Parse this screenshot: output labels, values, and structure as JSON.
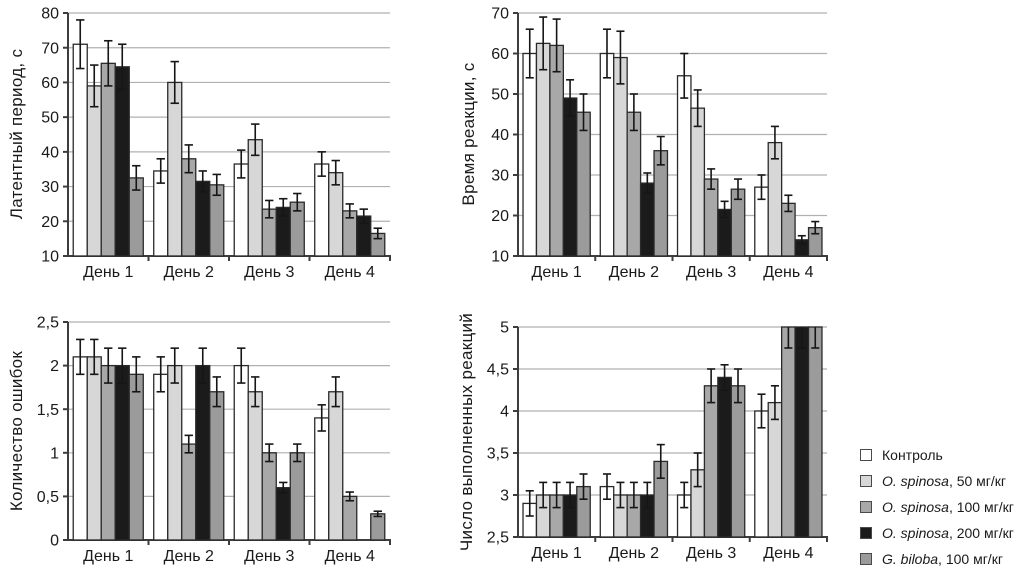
{
  "figure": {
    "background": "#ffffff",
    "series_colors": [
      "#ffffff",
      "#d7d7d7",
      "#a8a8a8",
      "#1b1b1b",
      "#9b9b9b"
    ],
    "grid_color": "#b0b0b0",
    "axis_color": "#3d3d3d",
    "bar_stroke": "#2a2a2a",
    "error_color": "#161616",
    "text_color": "#1a1a1a"
  },
  "legend": {
    "position": "bottom-right",
    "items": [
      {
        "italic": "",
        "text": "Контроль",
        "color": "#ffffff"
      },
      {
        "italic": "O. spinosa",
        "text": ", 50 мг/кг",
        "color": "#d7d7d7"
      },
      {
        "italic": "O. spinosa",
        "text": ", 100 мг/кг",
        "color": "#a8a8a8"
      },
      {
        "italic": "O. spinosa",
        "text": ", 200 мг/кг",
        "color": "#1b1b1b"
      },
      {
        "italic": "G. biloba",
        "text": ", 100 мг/кг",
        "color": "#9b9b9b"
      }
    ]
  },
  "chart_data": [
    {
      "id": "latent-period",
      "type": "bar",
      "ylabel": "Латентный период, с",
      "ylim": [
        10,
        80
      ],
      "yticks": [
        10,
        20,
        30,
        40,
        50,
        60,
        70,
        80
      ],
      "ytick_labels": [
        "10",
        "20",
        "30",
        "40",
        "50",
        "60",
        "70",
        "80"
      ],
      "categories": [
        "День 1",
        "День 2",
        "День 3",
        "День 4"
      ],
      "grid": true,
      "error_bars": true,
      "series": [
        {
          "name": "Контроль",
          "values": [
            71,
            34.5,
            36.5,
            36.5
          ],
          "errors": [
            7,
            3.5,
            4,
            3.5
          ]
        },
        {
          "name": "O. spinosa, 50 мг/кг",
          "values": [
            59,
            60,
            43.5,
            34
          ],
          "errors": [
            6,
            6,
            4.5,
            3.5
          ]
        },
        {
          "name": "O. spinosa, 100 мг/кг",
          "values": [
            65.5,
            38,
            23.5,
            23
          ],
          "errors": [
            6.5,
            4,
            2.5,
            2
          ]
        },
        {
          "name": "O. spinosa, 200 мг/кг",
          "values": [
            64.5,
            31.5,
            24,
            21.5
          ],
          "errors": [
            6.5,
            3,
            2.5,
            2
          ]
        },
        {
          "name": "G. biloba, 100 мг/кг",
          "values": [
            32.5,
            30.5,
            25.5,
            16.5
          ],
          "errors": [
            3.5,
            3,
            2.5,
            1.5
          ]
        }
      ]
    },
    {
      "id": "reaction-time",
      "type": "bar",
      "ylabel": "Время реакции, с",
      "ylim": [
        10,
        70
      ],
      "yticks": [
        10,
        20,
        30,
        40,
        50,
        60,
        70
      ],
      "ytick_labels": [
        "10",
        "20",
        "30",
        "40",
        "50",
        "60",
        "70"
      ],
      "categories": [
        "День 1",
        "День 2",
        "День 3",
        "День 4"
      ],
      "grid": true,
      "error_bars": true,
      "series": [
        {
          "name": "Контроль",
          "values": [
            60,
            60,
            54.5,
            27
          ],
          "errors": [
            6,
            6,
            5.5,
            3
          ]
        },
        {
          "name": "O. spinosa, 50 мг/кг",
          "values": [
            62.5,
            59,
            46.5,
            38
          ],
          "errors": [
            6.5,
            6.5,
            4.5,
            4
          ]
        },
        {
          "name": "O. spinosa, 100 мг/кг",
          "values": [
            62,
            45.5,
            29,
            23
          ],
          "errors": [
            6.5,
            4.5,
            2.5,
            2
          ]
        },
        {
          "name": "O. spinosa, 200 мг/кг",
          "values": [
            49,
            28,
            21.5,
            14
          ],
          "errors": [
            4.5,
            2.5,
            2,
            1
          ]
        },
        {
          "name": "G. biloba, 100 мг/кг",
          "values": [
            45.5,
            36,
            26.5,
            17
          ],
          "errors": [
            4.5,
            3.5,
            2.5,
            1.5
          ]
        }
      ]
    },
    {
      "id": "error-count",
      "type": "bar",
      "ylabel": "Количество ошибок",
      "ylim": [
        0,
        2.5
      ],
      "yticks": [
        0,
        0.5,
        1,
        1.5,
        2,
        2.5
      ],
      "ytick_labels": [
        "0",
        "0,5",
        "1",
        "1,5",
        "2",
        "2,5"
      ],
      "categories": [
        "День 1",
        "День 2",
        "День 3",
        "День 4"
      ],
      "grid": true,
      "error_bars": true,
      "series": [
        {
          "name": "Контроль",
          "values": [
            2.1,
            1.9,
            2.0,
            1.4
          ],
          "errors": [
            0.2,
            0.2,
            0.2,
            0.15
          ]
        },
        {
          "name": "O. spinosa, 50 мг/кг",
          "values": [
            2.1,
            2.0,
            1.7,
            1.7
          ],
          "errors": [
            0.2,
            0.2,
            0.17,
            0.17
          ]
        },
        {
          "name": "O. spinosa, 100 мг/кг",
          "values": [
            2.0,
            1.1,
            1.0,
            0.5
          ],
          "errors": [
            0.2,
            0.1,
            0.1,
            0.05
          ]
        },
        {
          "name": "O. spinosa, 200 мг/кг",
          "values": [
            2.0,
            2.0,
            0.6,
            0
          ],
          "errors": [
            0.2,
            0.2,
            0.06,
            0
          ]
        },
        {
          "name": "G. biloba, 100 мг/кг",
          "values": [
            1.9,
            1.7,
            1.0,
            0.3
          ],
          "errors": [
            0.2,
            0.17,
            0.1,
            0.03
          ]
        }
      ]
    },
    {
      "id": "completed-reactions",
      "type": "bar",
      "ylabel": "Число выполненных реакций",
      "ylim": [
        2.5,
        5
      ],
      "yticks": [
        2.5,
        3,
        3.5,
        4,
        4.5,
        5
      ],
      "ytick_labels": [
        "2,5",
        "3",
        "3,5",
        "4",
        "4,5",
        "5"
      ],
      "categories": [
        "День 1",
        "День 2",
        "День 3",
        "День 4"
      ],
      "grid": true,
      "error_bars": true,
      "series": [
        {
          "name": "Контроль",
          "values": [
            2.9,
            3.1,
            3.0,
            4.0
          ],
          "errors": [
            0.15,
            0.15,
            0.15,
            0.2
          ]
        },
        {
          "name": "O. spinosa, 50 мг/кг",
          "values": [
            3.0,
            3.0,
            3.3,
            4.1
          ],
          "errors": [
            0.15,
            0.15,
            0.2,
            0.2
          ]
        },
        {
          "name": "O. spinosa, 100 мг/кг",
          "values": [
            3.0,
            3.0,
            4.3,
            5.0
          ],
          "errors": [
            0.15,
            0.15,
            0.2,
            0.25
          ]
        },
        {
          "name": "O. spinosa, 200 мг/кг",
          "values": [
            3.0,
            3.0,
            4.4,
            5.0
          ],
          "errors": [
            0.15,
            0.15,
            0.15,
            0.25
          ]
        },
        {
          "name": "G. biloba, 100 мг/кг",
          "values": [
            3.1,
            3.4,
            4.3,
            5.0
          ],
          "errors": [
            0.15,
            0.2,
            0.2,
            0.25
          ]
        }
      ]
    }
  ]
}
